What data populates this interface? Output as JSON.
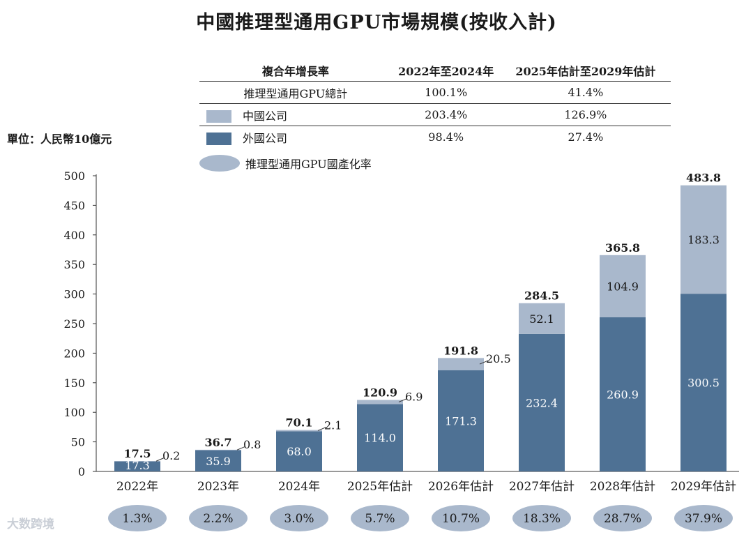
{
  "title": "中國推理型通用GPU市場規模(按收入計)",
  "unit": "單位：人民幣10億元",
  "watermark": "大数跨境",
  "cagr_table": {
    "header": [
      "複合年增長率",
      "2022年至2024年",
      "2025年估計至2029年估計"
    ],
    "rows": [
      {
        "label": "推理型通用GPU總計",
        "v1": "100.1%",
        "v2": "41.4%"
      },
      {
        "label": "中國公司",
        "v1": "203.4%",
        "v2": "126.9%"
      },
      {
        "label": "外國公司",
        "v1": "98.4%",
        "v2": "27.4%"
      }
    ]
  },
  "legend_localization": "推理型通用GPU國產化率",
  "colors": {
    "foreign": "#4e7194",
    "china": "#a9b8cc",
    "ellipse": "#a9b8cc"
  },
  "chart_data": {
    "type": "bar",
    "stacked": true,
    "title": "中國推理型通用GPU市場規模(按收入計)",
    "ylabel": "單位：人民幣10億元",
    "ylim": [
      0,
      500
    ],
    "yticks": [
      0,
      50,
      100,
      150,
      200,
      250,
      300,
      350,
      400,
      450,
      500
    ],
    "categories": [
      "2022年",
      "2023年",
      "2024年",
      "2025年估計",
      "2026年估計",
      "2027年估計",
      "2028年估計",
      "2029年估計"
    ],
    "series": [
      {
        "name": "外國公司",
        "values": [
          17.3,
          35.9,
          68.0,
          114.0,
          171.3,
          232.4,
          260.9,
          300.5
        ]
      },
      {
        "name": "中國公司",
        "values": [
          0.2,
          0.8,
          2.1,
          6.9,
          20.5,
          52.1,
          104.9,
          183.3
        ]
      }
    ],
    "totals": [
      17.5,
      36.7,
      70.1,
      120.9,
      191.8,
      284.5,
      365.8,
      483.8
    ],
    "total_labels": [
      "17.5",
      "36.7",
      "70.1",
      "120.9",
      "191.8",
      "284.5",
      "365.8",
      "483.8"
    ],
    "foreign_labels": [
      "17.3",
      "35.9",
      "68.0",
      "114.0",
      "171.3",
      "232.4",
      "260.9",
      "300.5"
    ],
    "china_labels": [
      "0.2",
      "0.8",
      "2.1",
      "6.9",
      "20.5",
      "52.1",
      "104.9",
      "183.3"
    ],
    "localization_rate": [
      "1.3%",
      "2.2%",
      "3.0%",
      "5.7%",
      "10.7%",
      "18.3%",
      "28.7%",
      "37.9%"
    ]
  }
}
